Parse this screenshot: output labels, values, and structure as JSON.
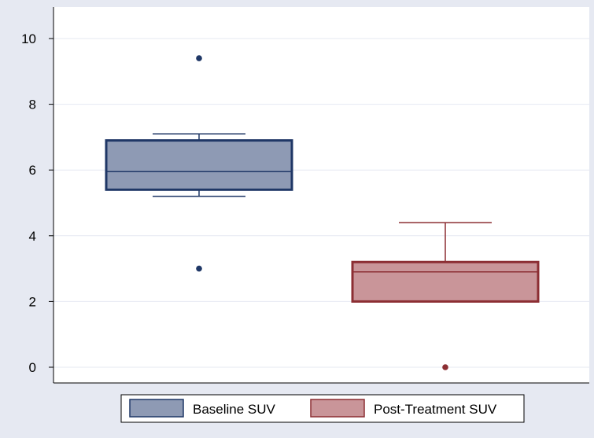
{
  "chart_data": {
    "type": "box",
    "title": "",
    "xlabel": "",
    "ylabel": "",
    "ylim": [
      -0.5,
      10.5
    ],
    "yticks": [
      0,
      2,
      4,
      6,
      8,
      10
    ],
    "ytick_labels": [
      "0",
      "2",
      "4",
      "6",
      "8",
      "10"
    ],
    "grid": true,
    "legend_position": "bottom",
    "series": [
      {
        "name": "Baseline SUV",
        "color": "#8e9ab4",
        "edge_color": "#1f3766",
        "whisker_low": 5.2,
        "q1": 5.4,
        "median": 5.95,
        "q3": 6.9,
        "whisker_high": 7.1,
        "outliers": [
          9.4,
          3.0
        ]
      },
      {
        "name": "Post-Treatment SUV",
        "color": "#c99599",
        "edge_color": "#8c2e33",
        "whisker_low": 2.0,
        "q1": 2.0,
        "median": 2.9,
        "q3": 3.2,
        "whisker_high": 4.4,
        "outliers": [
          0.0
        ]
      }
    ]
  }
}
